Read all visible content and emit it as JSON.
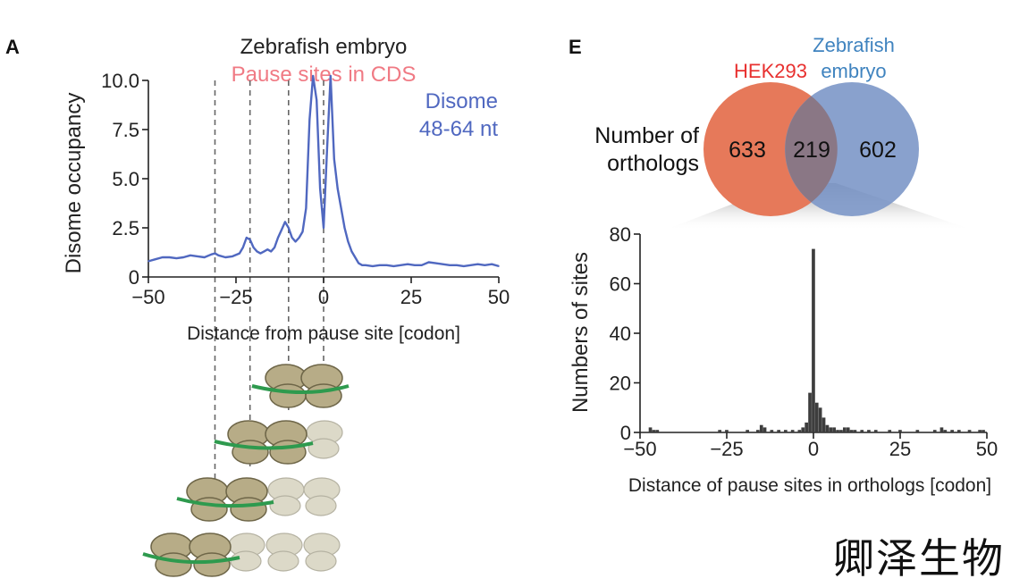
{
  "watermark": "卿泽生物",
  "panel_a": {
    "panel_label": "A",
    "title": "Zebrafish embryo",
    "subtitle": "Pause sites in CDS",
    "legend_line1": "Disome",
    "legend_line2": "48-64 nt",
    "colors": {
      "line": "#5068c0",
      "subtitle": "#f07a84",
      "ribosome_dark": "#b7ac87",
      "ribosome_light": "#dcd9c8",
      "mrna": "#2e9a4e"
    }
  },
  "panel_e": {
    "panel_label": "E",
    "venn": {
      "label_line1": "Number of",
      "label_line2": "orthologs",
      "left_name": "HEK293",
      "right_name_line1": "Zebrafish",
      "right_name_line2": "embryo",
      "left_only": "633",
      "overlap": "219",
      "right_only": "602",
      "colors": {
        "left": "#e6795a",
        "right": "#7f99c9",
        "left_label": "#e8302f",
        "right_label": "#3f83bf",
        "overlap": "#8a7785"
      }
    }
  },
  "chart_data": [
    {
      "type": "line",
      "panel": "A",
      "title": "Zebrafish embryo",
      "subtitle": "Pause sites in CDS",
      "xlabel": "Distance from pause site [codon]",
      "ylabel": "Disome occupancy",
      "xlim": [
        -50,
        50
      ],
      "ylim": [
        0,
        10
      ],
      "xticks": [
        -50,
        -25,
        0,
        25,
        50
      ],
      "xtick_labels": [
        "−50",
        "−25",
        "0",
        "25",
        "50"
      ],
      "yticks": [
        0,
        2.5,
        5,
        7.5,
        10
      ],
      "ytick_labels": [
        "0",
        "2.5",
        "5.0",
        "7.5",
        "10.0"
      ],
      "reference_lines": [
        -31,
        -21,
        -10,
        0
      ],
      "series": [
        {
          "name": "Disome 48-64 nt",
          "x": [
            -50,
            -48,
            -46,
            -44,
            -42,
            -40,
            -38,
            -36,
            -34,
            -32,
            -31,
            -30,
            -28,
            -26,
            -24,
            -23,
            -22,
            -21,
            -20,
            -19,
            -18,
            -17,
            -16,
            -15,
            -14,
            -13,
            -12,
            -11,
            -10,
            -9,
            -8,
            -7,
            -6,
            -5,
            -4,
            -3,
            -2,
            -1,
            0,
            1,
            2,
            3,
            4,
            5,
            6,
            7,
            8,
            9,
            10,
            11,
            12,
            14,
            16,
            18,
            20,
            22,
            24,
            26,
            28,
            30,
            32,
            34,
            36,
            38,
            40,
            42,
            44,
            46,
            48,
            50
          ],
          "y": [
            0.8,
            0.9,
            1.0,
            1.0,
            0.95,
            1.0,
            1.1,
            1.05,
            1.0,
            1.15,
            1.2,
            1.1,
            1.0,
            1.05,
            1.2,
            1.5,
            2.0,
            1.9,
            1.5,
            1.3,
            1.2,
            1.3,
            1.4,
            1.3,
            1.5,
            2.0,
            2.4,
            2.8,
            2.5,
            2.0,
            1.8,
            2.0,
            2.3,
            3.5,
            8.0,
            10.5,
            9.0,
            4.5,
            2.5,
            6.5,
            10.5,
            6.0,
            4.5,
            3.5,
            2.5,
            1.8,
            1.3,
            1.0,
            0.7,
            0.6,
            0.6,
            0.55,
            0.6,
            0.6,
            0.55,
            0.6,
            0.65,
            0.6,
            0.6,
            0.75,
            0.7,
            0.65,
            0.6,
            0.6,
            0.55,
            0.6,
            0.65,
            0.6,
            0.65,
            0.55
          ]
        }
      ]
    },
    {
      "type": "bar",
      "panel": "E",
      "xlabel": "Distance of pause sites in orthologs [codon]",
      "ylabel": "Numbers of sites",
      "xlim": [
        -50,
        50
      ],
      "ylim": [
        0,
        80
      ],
      "xticks": [
        -50,
        -25,
        0,
        25,
        50
      ],
      "xtick_labels": [
        "−50",
        "−25",
        "0",
        "25",
        "50"
      ],
      "yticks": [
        0,
        20,
        40,
        60,
        80
      ],
      "ytick_labels": [
        "0",
        "20",
        "40",
        "60",
        "80"
      ],
      "x": [
        -47,
        -46,
        -45,
        -27,
        -25,
        -19,
        -16,
        -15,
        -14,
        -12,
        -10,
        -8,
        -6,
        -4,
        -3,
        -2,
        -1,
        0,
        1,
        2,
        3,
        4,
        5,
        6,
        7,
        8,
        9,
        10,
        11,
        12,
        14,
        16,
        18,
        22,
        25,
        30,
        35,
        37,
        38,
        40,
        42,
        45,
        48,
        49
      ],
      "values": [
        2,
        1,
        1,
        1,
        1,
        1,
        1,
        3,
        2,
        1,
        1,
        1,
        1,
        1,
        2,
        4,
        16,
        74,
        12,
        10,
        6,
        3,
        2,
        2,
        1,
        1,
        2,
        2,
        1,
        1,
        1,
        1,
        1,
        1,
        1,
        1,
        1,
        2,
        1,
        1,
        1,
        1,
        1,
        1
      ]
    }
  ]
}
